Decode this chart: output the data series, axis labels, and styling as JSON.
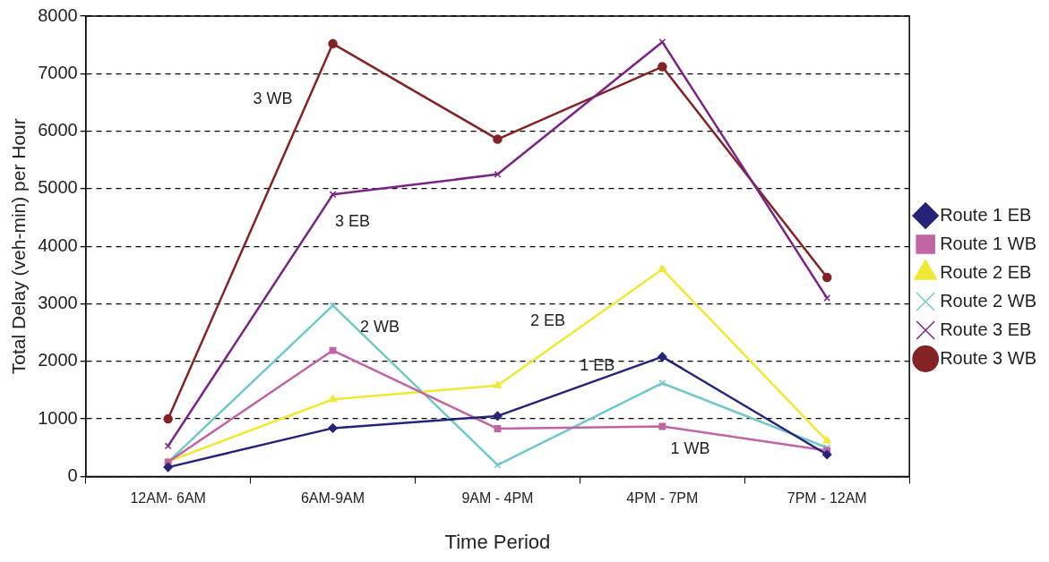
{
  "chart_data": {
    "type": "line",
    "xlabel": "Time Period",
    "ylabel": "Total Delay (veh-min) per Hour",
    "categories": [
      "12AM- 6AM",
      "6AM-9AM",
      "9AM - 4PM",
      "4PM - 7PM",
      "7PM - 12AM"
    ],
    "series": [
      {
        "name": "Route 1 EB",
        "color": "#25237a",
        "marker": "diamond",
        "values": [
          160,
          840,
          1050,
          2080,
          380
        ]
      },
      {
        "name": "Route 1 WB",
        "color": "#c064a4",
        "marker": "square",
        "values": [
          250,
          2190,
          830,
          870,
          450
        ]
      },
      {
        "name": "Route 2 EB",
        "color": "#f0e832",
        "marker": "triangle",
        "values": [
          260,
          1340,
          1580,
          3600,
          620
        ]
      },
      {
        "name": "Route 2 WB",
        "color": "#72c8c8",
        "marker": "cross",
        "values": [
          250,
          2970,
          200,
          1620,
          500
        ]
      },
      {
        "name": "Route 3 EB",
        "color": "#7a2487",
        "marker": "cross",
        "values": [
          530,
          4900,
          5250,
          7550,
          3100
        ]
      },
      {
        "name": "Route 3 WB",
        "color": "#832326",
        "marker": "circle",
        "values": [
          1000,
          7520,
          5860,
          7120,
          3460
        ]
      }
    ],
    "ylim": [
      0,
      8000
    ],
    "yticks": [
      0,
      1000,
      2000,
      3000,
      4000,
      5000,
      6000,
      7000,
      8000
    ],
    "grid": "y",
    "legend": "right",
    "line_style": "solid",
    "annotations": [
      "3 WB",
      "3 EB",
      "2 WB",
      "2 EB",
      "1 EB",
      "1 WB"
    ]
  }
}
